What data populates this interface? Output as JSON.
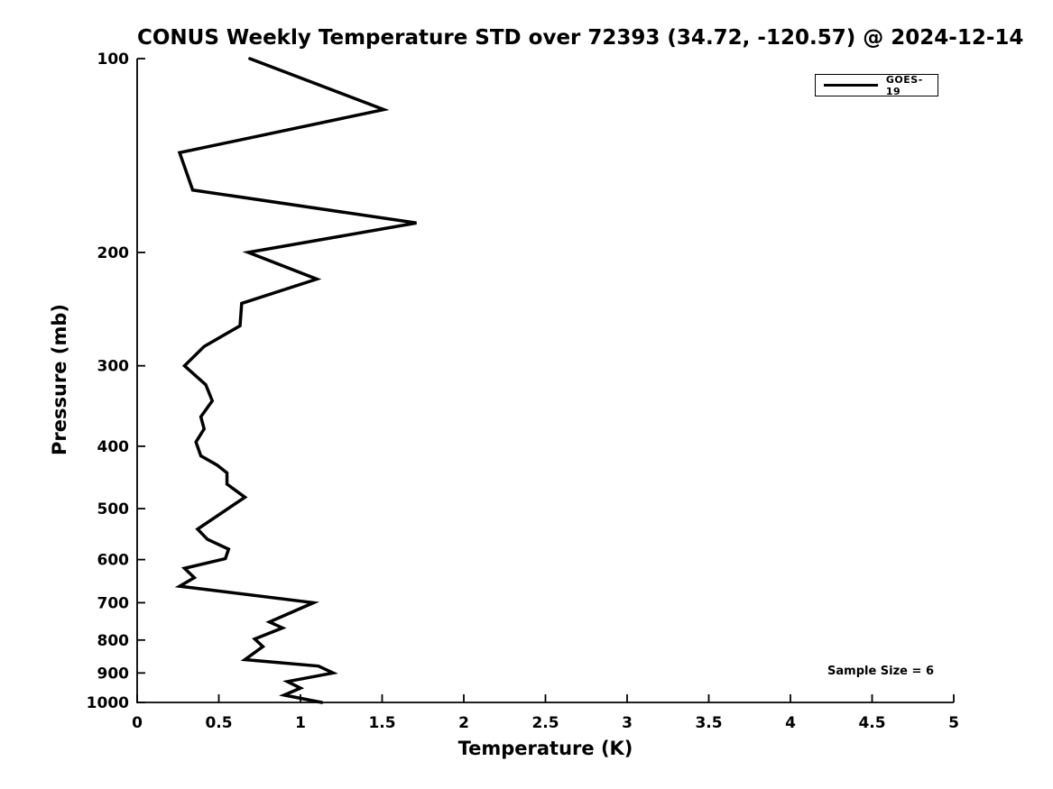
{
  "figure": {
    "title": "CONUS Weekly Temperature STD over 72393 (34.72, -120.57) @ 2024-12-14",
    "xlabel": "Temperature (K)",
    "ylabel": "Pressure (mb)",
    "legend": {
      "label": "GOES-19"
    },
    "annotation": "Sample Size = 6",
    "colors": {
      "line": "#000000",
      "axis": "#000000",
      "text": "#000000",
      "background": "#ffffff"
    }
  },
  "chart_data": {
    "type": "line",
    "title": "CONUS Weekly Temperature STD over 72393 (34.72, -120.57) @ 2024-12-14",
    "xlabel": "Temperature (K)",
    "ylabel": "Pressure (mb)",
    "xlim": [
      0,
      5
    ],
    "ylim": [
      100,
      1000
    ],
    "y_scale": "log",
    "y_inverted": true,
    "grid": false,
    "legend_position": "upper right",
    "legend_entries": [
      "GOES-19"
    ],
    "annotations": [
      "Sample Size = 6"
    ],
    "x_ticks": [
      0,
      0.5,
      1,
      1.5,
      2,
      2.5,
      3,
      3.5,
      4,
      4.5,
      5
    ],
    "x_tick_labels": [
      "0",
      "0.5",
      "1",
      "1.5",
      "2",
      "2.5",
      "3",
      "3.5",
      "4",
      "4.5",
      "5"
    ],
    "y_ticks": [
      100,
      200,
      300,
      400,
      500,
      600,
      700,
      800,
      900,
      1000
    ],
    "y_tick_labels": [
      "100",
      "200",
      "300",
      "400",
      "500",
      "600",
      "700",
      "800",
      "900",
      "1000"
    ],
    "series": [
      {
        "name": "GOES-19",
        "color": "#000000",
        "pressure_mb": [
          100,
          120,
          140,
          160,
          180,
          200,
          220,
          240,
          260,
          280,
          300,
          321,
          340,
          360,
          376,
          394,
          414,
          428,
          440,
          458,
          480,
          538,
          558,
          578,
          598,
          619,
          640,
          660,
          700,
          750,
          766,
          797,
          819,
          858,
          878,
          900,
          928,
          950,
          974,
          1000
        ],
        "std_k": [
          0.69,
          1.51,
          0.26,
          0.34,
          1.71,
          0.68,
          1.1,
          0.64,
          0.63,
          0.41,
          0.29,
          0.42,
          0.46,
          0.39,
          0.41,
          0.36,
          0.39,
          0.49,
          0.55,
          0.55,
          0.66,
          0.37,
          0.43,
          0.56,
          0.54,
          0.29,
          0.35,
          0.26,
          1.08,
          0.81,
          0.89,
          0.72,
          0.77,
          0.66,
          1.11,
          1.2,
          0.92,
          1.0,
          0.9,
          1.13
        ]
      }
    ]
  }
}
